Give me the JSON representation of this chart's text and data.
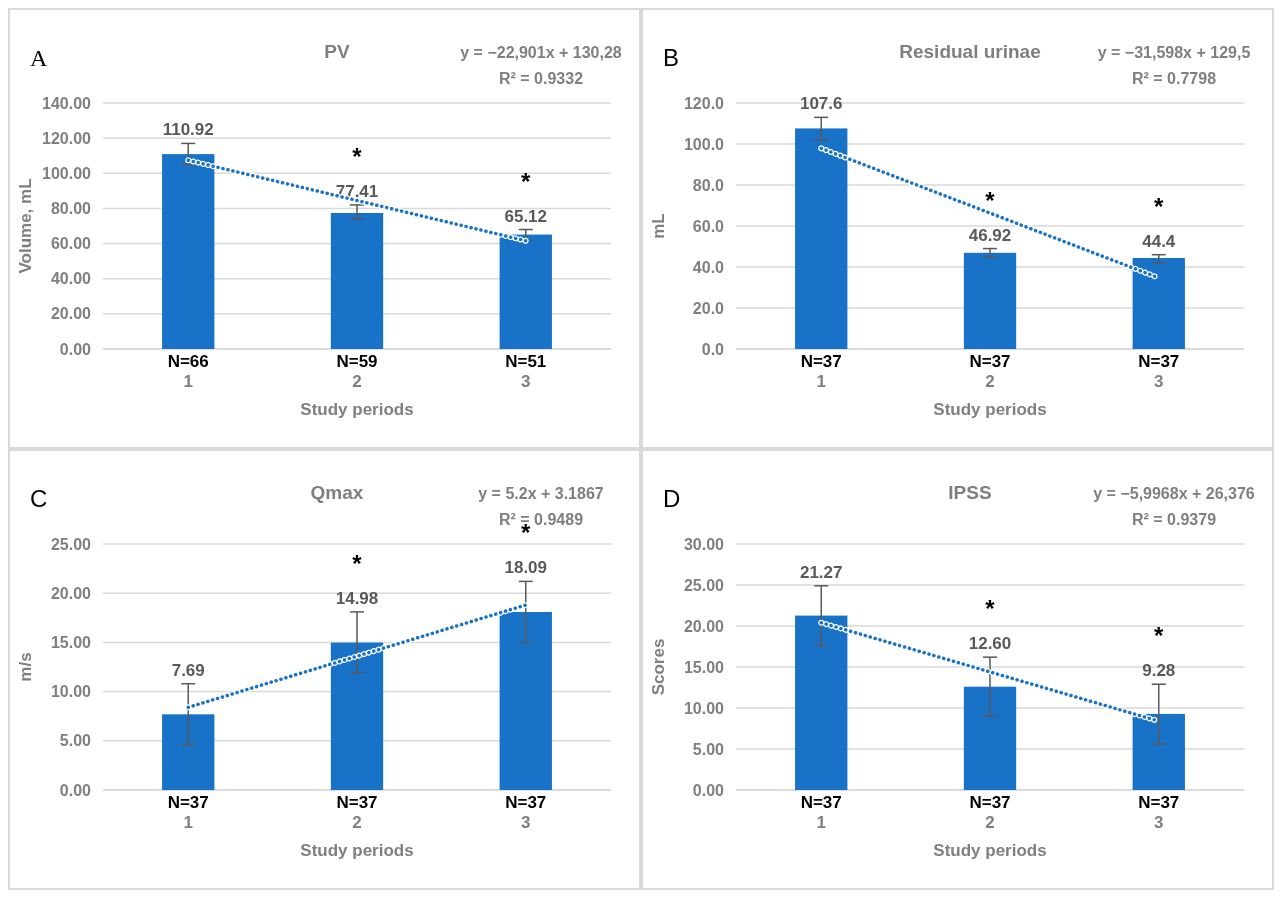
{
  "chart_data": [
    {
      "type": "bar",
      "title": "PV",
      "xlabel": "Study periods",
      "ylabel": "Volume, mL",
      "categories": [
        "1",
        "2",
        "3"
      ],
      "ylim": [
        0,
        140
      ],
      "yticks": [
        {
          "value": 0,
          "label": "0.00"
        },
        {
          "value": 20,
          "label": "20.00"
        },
        {
          "value": 40,
          "label": "40.00"
        },
        {
          "value": 60,
          "label": "60.00"
        },
        {
          "value": 80,
          "label": "80.00"
        },
        {
          "value": 100,
          "label": "100.00"
        },
        {
          "value": 120,
          "label": "120.00"
        },
        {
          "value": 140,
          "label": "140.00"
        }
      ],
      "grid": "y",
      "series": [
        {
          "color": "#1772c8",
          "values": [
            110.92,
            77.41,
            65.12
          ],
          "errors": [
            [
              105,
              117
            ],
            [
              74,
              82
            ],
            [
              62,
              68
            ]
          ],
          "value_labels": [
            "110.92",
            "77.41",
            "65.12"
          ]
        },
        {
          "type": "line",
          "color": "#1772c8",
          "line_style": "dotted",
          "marker": "none",
          "values": [
            107.4,
            84.5,
            61.6
          ]
        }
      ],
      "annotations": [
        "A",
        "y = −22,901x + 130,28",
        "R² = 0.9332",
        {
          "text": "N=66",
          "x": "1",
          "y": 0
        },
        {
          "text": "N=59",
          "x": "2",
          "y": 0
        },
        {
          "text": "N=51",
          "x": "3",
          "y": 0
        },
        {
          "text": "*",
          "x": "2",
          "y": 77.41
        },
        {
          "text": "*",
          "x": "3",
          "y": 65.12
        }
      ]
    },
    {
      "type": "bar",
      "title": "Residual urinae",
      "xlabel": "Study periods",
      "ylabel": "mL",
      "categories": [
        "1",
        "2",
        "3"
      ],
      "ylim": [
        0,
        120
      ],
      "yticks": [
        {
          "value": 0,
          "label": "0.0"
        },
        {
          "value": 20,
          "label": "20.0"
        },
        {
          "value": 40,
          "label": "40.0"
        },
        {
          "value": 60,
          "label": "60.0"
        },
        {
          "value": 80,
          "label": "80.0"
        },
        {
          "value": 100,
          "label": "100.0"
        },
        {
          "value": 120,
          "label": "120.0"
        }
      ],
      "grid": "y",
      "series": [
        {
          "color": "#1772c8",
          "values": [
            107.6,
            46.92,
            44.4
          ],
          "errors": [
            [
              102,
              113
            ],
            [
              45,
              49
            ],
            [
              42,
              46
            ]
          ],
          "value_labels": [
            "107.6",
            "46.92",
            "44.4"
          ]
        },
        {
          "type": "line",
          "color": "#1772c8",
          "line_style": "dotted",
          "marker": "none",
          "values": [
            97.9,
            66.3,
            34.7
          ]
        }
      ],
      "annotations": [
        "B",
        "y = −31,598x + 129,5",
        "R² = 0.7798",
        {
          "text": "N=37",
          "x": "1",
          "y": 0
        },
        {
          "text": "N=37",
          "x": "2",
          "y": 0
        },
        {
          "text": "N=37",
          "x": "3",
          "y": 0
        },
        {
          "text": "*",
          "x": "2",
          "y": 46.92
        },
        {
          "text": "*",
          "x": "3",
          "y": 44.4
        }
      ]
    },
    {
      "type": "bar",
      "title": "Qmax",
      "xlabel": "Study periods",
      "ylabel": "m/s",
      "categories": [
        "1",
        "2",
        "3"
      ],
      "ylim": [
        0,
        25
      ],
      "yticks": [
        {
          "value": 0,
          "label": "0.00"
        },
        {
          "value": 5,
          "label": "5.00"
        },
        {
          "value": 10,
          "label": "10.00"
        },
        {
          "value": 15,
          "label": "15.00"
        },
        {
          "value": 20,
          "label": "20.00"
        },
        {
          "value": 25,
          "label": "25.00"
        }
      ],
      "grid": "y",
      "series": [
        {
          "color": "#1772c8",
          "values": [
            7.69,
            14.98,
            18.09
          ],
          "errors": [
            [
              4.6,
              10.8
            ],
            [
              11.9,
              18.1
            ],
            [
              15,
              21.2
            ]
          ],
          "value_labels": [
            "7.69",
            "14.98",
            "18.09"
          ]
        },
        {
          "type": "line",
          "color": "#1772c8",
          "line_style": "dotted",
          "marker": "none",
          "values": [
            8.4,
            13.6,
            18.8
          ]
        }
      ],
      "annotations": [
        "C",
        "y = 5.2x + 3.1867",
        "R² = 0.9489",
        {
          "text": "N=37",
          "x": "1",
          "y": 0
        },
        {
          "text": "N=37",
          "x": "2",
          "y": 0
        },
        {
          "text": "N=37",
          "x": "3",
          "y": 0
        },
        {
          "text": "*",
          "x": "2",
          "y": 14.98
        },
        {
          "text": "*",
          "x": "3",
          "y": 18.09
        }
      ]
    },
    {
      "type": "bar",
      "title": "IPSS",
      "xlabel": "Study periods",
      "ylabel": "Scores",
      "categories": [
        "1",
        "2",
        "3"
      ],
      "ylim": [
        0,
        30
      ],
      "yticks": [
        {
          "value": 0,
          "label": "0.00"
        },
        {
          "value": 5,
          "label": "5.00"
        },
        {
          "value": 10,
          "label": "10.00"
        },
        {
          "value": 15,
          "label": "15.00"
        },
        {
          "value": 20,
          "label": "20.00"
        },
        {
          "value": 25,
          "label": "25.00"
        },
        {
          "value": 30,
          "label": "30.00"
        }
      ],
      "grid": "y",
      "series": [
        {
          "color": "#1772c8",
          "values": [
            21.27,
            12.6,
            9.28
          ],
          "errors": [
            [
              17.6,
              24.9
            ],
            [
              9,
              16.2
            ],
            [
              5.6,
              12.9
            ]
          ],
          "value_labels": [
            "21.27",
            "12.60",
            "9.28"
          ]
        },
        {
          "type": "line",
          "color": "#1772c8",
          "line_style": "dotted",
          "marker": "none",
          "values": [
            20.4,
            14.4,
            8.4
          ]
        }
      ],
      "annotations": [
        "D",
        "y = −5,9968x + 26,376",
        "R² = 0.9379",
        {
          "text": "N=37",
          "x": "1",
          "y": 0
        },
        {
          "text": "N=37",
          "x": "2",
          "y": 0
        },
        {
          "text": "N=37",
          "x": "3",
          "y": 0
        },
        {
          "text": "*",
          "x": "2",
          "y": 12.6
        },
        {
          "text": "*",
          "x": "3",
          "y": 9.28
        }
      ]
    }
  ]
}
